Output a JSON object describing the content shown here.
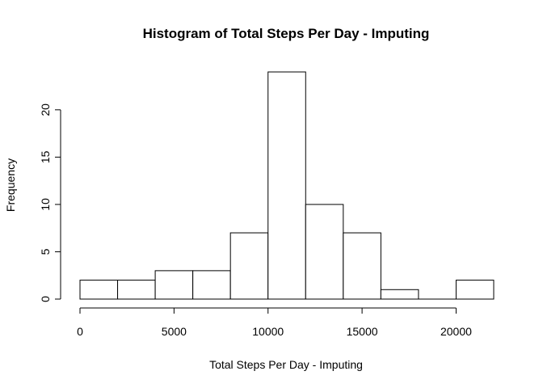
{
  "chart_data": {
    "type": "bar",
    "title": "Histogram of Total Steps Per Day - Imputing",
    "xlabel": "Total Steps Per Day - Imputing",
    "ylabel": "Frequency",
    "bins": [
      {
        "from": 0,
        "to": 2000,
        "count": 2
      },
      {
        "from": 2000,
        "to": 4000,
        "count": 2
      },
      {
        "from": 4000,
        "to": 6000,
        "count": 3
      },
      {
        "from": 6000,
        "to": 8000,
        "count": 3
      },
      {
        "from": 8000,
        "to": 10000,
        "count": 7
      },
      {
        "from": 10000,
        "to": 12000,
        "count": 24
      },
      {
        "from": 12000,
        "to": 14000,
        "count": 10
      },
      {
        "from": 14000,
        "to": 16000,
        "count": 7
      },
      {
        "from": 16000,
        "to": 18000,
        "count": 1
      },
      {
        "from": 18000,
        "to": 20000,
        "count": 0
      },
      {
        "from": 20000,
        "to": 22000,
        "count": 2
      }
    ],
    "xlim": [
      0,
      22000
    ],
    "ylim": [
      0,
      24
    ],
    "x_ticks": [
      0,
      5000,
      10000,
      15000,
      20000
    ],
    "y_ticks": [
      0,
      5,
      10,
      15,
      20
    ],
    "grid": false,
    "colors": {
      "bar_fill": "#ffffff",
      "bar_stroke": "#000000"
    }
  }
}
